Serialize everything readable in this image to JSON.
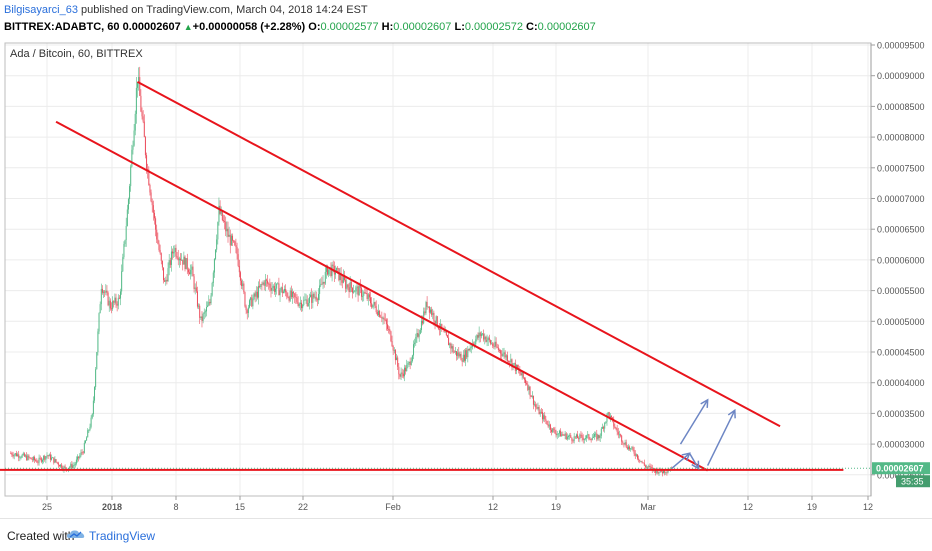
{
  "header": {
    "author": "Bilgisayarci_63",
    "published": " published on TradingView.com, March 04, 2018 14:24 EST",
    "symbol": "BITTREX:ADABTC, 60",
    "last": " 0.00002607 ",
    "change": "+0.00000058 (+2.28%)",
    "o_label": " O:",
    "o_value": "0.00002577",
    "h_label": " H:",
    "h_value": "0.00002607",
    "l_label": " L:",
    "l_value": "0.00002572",
    "c_label": " C:",
    "c_value": "0.00002607"
  },
  "chart_data": {
    "type": "candlestick",
    "title": "Ada / Bitcoin, 60, BITTREX",
    "y_ticks": [
      "0.00009500",
      "0.00009000",
      "0.00008500",
      "0.00008000",
      "0.00007500",
      "0.00007000",
      "0.00006500",
      "0.00006000",
      "0.00005500",
      "0.00005000",
      "0.00004500",
      "0.00004000",
      "0.00003500",
      "0.00003000",
      "0.00002500"
    ],
    "ylim": [
      2.4e-05,
      9.6e-05
    ],
    "x_ticks": [
      "25",
      "2018",
      "8",
      "15",
      "22",
      "Feb",
      "12",
      "19",
      "Mar",
      "12",
      "19",
      "12"
    ],
    "price_badge": "0.00002607",
    "time_badge": "35:35",
    "colors": {
      "up": "#53b987",
      "down": "#eb4d5c",
      "trendline": "#e8141c",
      "arrow": "#6d86c4"
    },
    "price_path": [
      {
        "date": "2017-12-21",
        "price": 2.85e-05
      },
      {
        "date": "2017-12-22",
        "price": 2.82e-05
      },
      {
        "date": "2017-12-24",
        "price": 2.72e-05
      },
      {
        "date": "2017-12-25",
        "price": 2.82e-05
      },
      {
        "date": "2017-12-27",
        "price": 2.6e-05
      },
      {
        "date": "2017-12-28",
        "price": 2.66e-05
      },
      {
        "date": "2017-12-29",
        "price": 2.9e-05
      },
      {
        "date": "2017-12-30",
        "price": 3.45e-05
      },
      {
        "date": "2017-12-31",
        "price": 5.6e-05
      },
      {
        "date": "2018-01-01",
        "price": 5.25e-05
      },
      {
        "date": "2018-01-02",
        "price": 5.35e-05
      },
      {
        "date": "2018-01-03",
        "price": 7e-05
      },
      {
        "date": "2018-01-04",
        "price": 9e-05
      },
      {
        "date": "2018-01-05",
        "price": 7.6e-05
      },
      {
        "date": "2018-01-06",
        "price": 6.5e-05
      },
      {
        "date": "2018-01-07",
        "price": 5.6e-05
      },
      {
        "date": "2018-01-08",
        "price": 6.2e-05
      },
      {
        "date": "2018-01-09",
        "price": 6e-05
      },
      {
        "date": "2018-01-10",
        "price": 5.8e-05
      },
      {
        "date": "2018-01-11",
        "price": 5e-05
      },
      {
        "date": "2018-01-12",
        "price": 5.3e-05
      },
      {
        "date": "2018-01-13",
        "price": 6.8e-05
      },
      {
        "date": "2018-01-14",
        "price": 6.4e-05
      },
      {
        "date": "2018-01-15",
        "price": 6.1e-05
      },
      {
        "date": "2018-01-16",
        "price": 5.2e-05
      },
      {
        "date": "2018-01-17",
        "price": 5.4e-05
      },
      {
        "date": "2018-01-18",
        "price": 5.65e-05
      },
      {
        "date": "2018-01-19",
        "price": 5.55e-05
      },
      {
        "date": "2018-01-20",
        "price": 5.5e-05
      },
      {
        "date": "2018-01-21",
        "price": 5.4e-05
      },
      {
        "date": "2018-01-22",
        "price": 5.3e-05
      },
      {
        "date": "2018-01-23",
        "price": 5.35e-05
      },
      {
        "date": "2018-01-24",
        "price": 5.45e-05
      },
      {
        "date": "2018-01-25",
        "price": 5.85e-05
      },
      {
        "date": "2018-01-26",
        "price": 5.8e-05
      },
      {
        "date": "2018-01-27",
        "price": 5.6e-05
      },
      {
        "date": "2018-01-29",
        "price": 5.45e-05
      },
      {
        "date": "2018-01-31",
        "price": 5.1e-05
      },
      {
        "date": "2018-02-01",
        "price": 4.75e-05
      },
      {
        "date": "2018-02-02",
        "price": 4.1e-05
      },
      {
        "date": "2018-02-03",
        "price": 4.3e-05
      },
      {
        "date": "2018-02-04",
        "price": 4.8e-05
      },
      {
        "date": "2018-02-05",
        "price": 5.3e-05
      },
      {
        "date": "2018-02-06",
        "price": 5e-05
      },
      {
        "date": "2018-02-08",
        "price": 4.5e-05
      },
      {
        "date": "2018-02-09",
        "price": 4.4e-05
      },
      {
        "date": "2018-02-10",
        "price": 4.65e-05
      },
      {
        "date": "2018-02-11",
        "price": 4.8e-05
      },
      {
        "date": "2018-02-12",
        "price": 4.65e-05
      },
      {
        "date": "2018-02-14",
        "price": 4.4e-05
      },
      {
        "date": "2018-02-16",
        "price": 4e-05
      },
      {
        "date": "2018-02-17",
        "price": 3.6e-05
      },
      {
        "date": "2018-02-19",
        "price": 3.2e-05
      },
      {
        "date": "2018-02-21",
        "price": 3.1e-05
      },
      {
        "date": "2018-02-24",
        "price": 3.12e-05
      },
      {
        "date": "2018-02-25",
        "price": 3.5e-05
      },
      {
        "date": "2018-02-26",
        "price": 3.2e-05
      },
      {
        "date": "2018-02-27",
        "price": 2.98e-05
      },
      {
        "date": "2018-02-28",
        "price": 2.85e-05
      },
      {
        "date": "2018-03-01",
        "price": 2.65e-05
      },
      {
        "date": "2018-03-02",
        "price": 2.58e-05
      },
      {
        "date": "2018-03-03",
        "price": 2.55e-05
      },
      {
        "date": "2018-03-04",
        "price": 2.61e-05
      }
    ],
    "trendlines": [
      {
        "from": {
          "date": "2018-01-04",
          "price": 8.9e-05
        },
        "to": {
          "date": "2018-03-16",
          "price": 3.29e-05
        }
      },
      {
        "from": {
          "date": "2017-12-26",
          "price": 8.25e-05
        },
        "to": {
          "date": "2018-03-08",
          "price": 2.57e-05
        }
      },
      {
        "from": {
          "date": "2017-12-18",
          "price": 2.58e-05
        },
        "to": {
          "date": "2018-03-23",
          "price": 2.58e-05
        }
      }
    ],
    "arrows": [
      {
        "from": {
          "date": "2018-03-04",
          "price": 2.6e-05
        },
        "to": {
          "date": "2018-03-06",
          "price": 2.85e-05
        }
      },
      {
        "from": {
          "date": "2018-03-06",
          "price": 2.85e-05
        },
        "to": {
          "date": "2018-03-07",
          "price": 2.6e-05
        }
      },
      {
        "from": {
          "date": "2018-03-05",
          "price": 3e-05
        },
        "to": {
          "date": "2018-03-08",
          "price": 3.72e-05
        }
      },
      {
        "from": {
          "date": "2018-03-08",
          "price": 2.65e-05
        },
        "to": {
          "date": "2018-03-11",
          "price": 3.55e-05
        }
      }
    ]
  },
  "footer": {
    "created": "Created with",
    "brand": "TradingView"
  }
}
